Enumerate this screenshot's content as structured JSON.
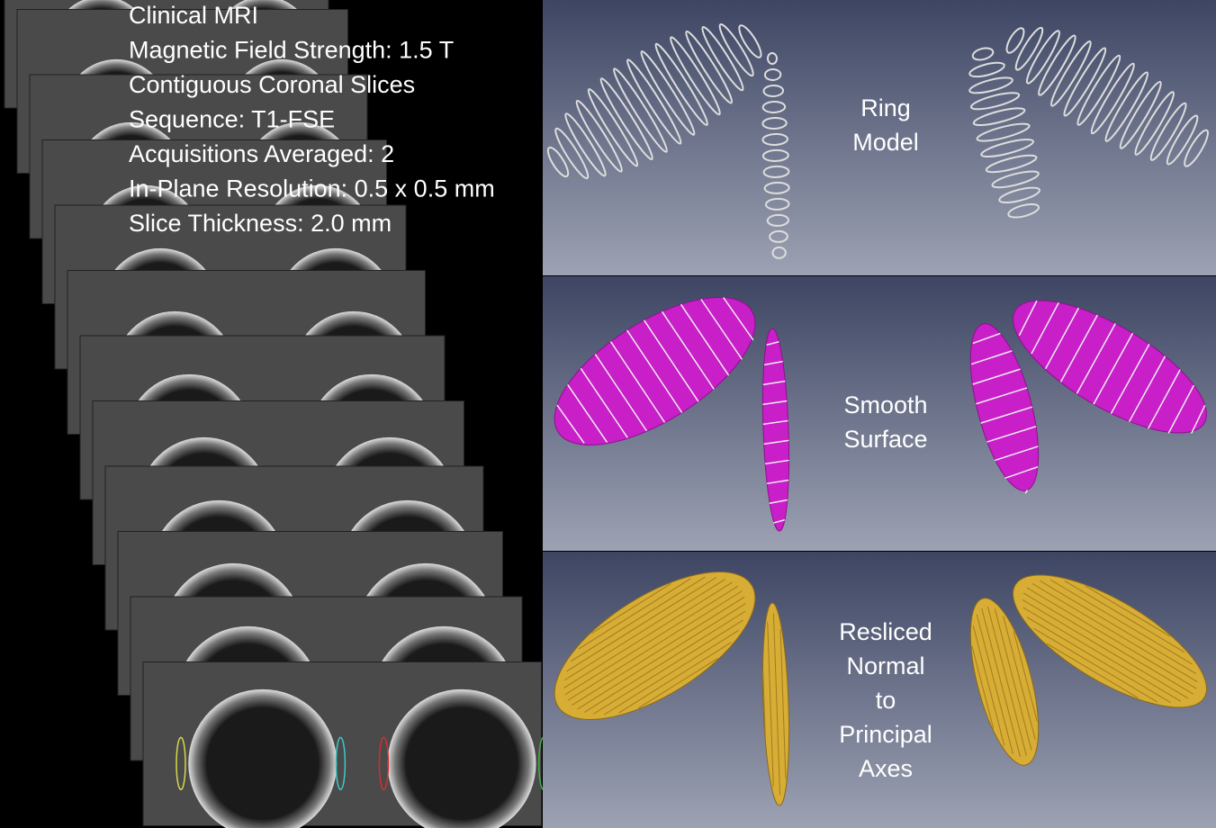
{
  "info": {
    "lines": [
      "Clinical MRI",
      "Magnetic Field Strength: 1.5 T",
      "Contiguous Coronal Slices",
      "Sequence: T1-FSE",
      "Acquisitions Averaged: 2",
      "In-Plane Resolution: 0.5 x 0.5 mm",
      "Slice Thickness: 2.0 mm"
    ]
  },
  "panels": [
    {
      "label": [
        "Ring",
        "Model"
      ]
    },
    {
      "label": [
        "Smooth",
        "Surface"
      ]
    },
    {
      "label": [
        "Resliced",
        "Normal",
        "to",
        "Principal",
        "Axes"
      ]
    }
  ]
}
